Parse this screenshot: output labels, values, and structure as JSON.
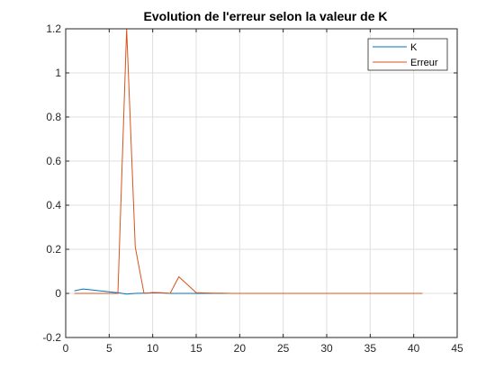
{
  "chart_data": {
    "type": "line",
    "title": "Evolution de l'erreur selon la valeur de K",
    "xlabel": "",
    "ylabel": "",
    "xlim": [
      0,
      45
    ],
    "ylim": [
      -0.2,
      1.2
    ],
    "xticks": [
      0,
      5,
      10,
      15,
      20,
      25,
      30,
      35,
      40,
      45
    ],
    "xtick_labels": [
      "0",
      "5",
      "10",
      "15",
      "20",
      "25",
      "30",
      "35",
      "40",
      "45"
    ],
    "yticks": [
      -0.2,
      0,
      0.2,
      0.4,
      0.6,
      0.8,
      1,
      1.2
    ],
    "ytick_labels": [
      "-0.2",
      "0",
      "0.2",
      "0.4",
      "0.6",
      "0.8",
      "1",
      "1.2"
    ],
    "grid": true,
    "legend_position": "top-right",
    "series": [
      {
        "name": "K",
        "color": "#0072BD",
        "x": [
          1,
          2,
          3,
          4,
          5,
          6,
          7,
          8,
          9,
          10,
          11,
          12,
          13,
          14,
          15,
          16,
          17,
          18,
          19,
          20,
          21,
          22,
          23,
          24,
          25,
          26,
          27,
          28,
          29,
          30,
          31,
          32,
          33,
          34,
          35,
          36,
          37,
          38,
          39,
          40,
          41
        ],
        "values": [
          0.012,
          0.02,
          0.016,
          0.011,
          0.007,
          0.003,
          -0.003,
          0.0,
          0.001,
          0.002,
          0.002,
          0.0,
          0.0,
          0.0,
          0.0,
          0.0,
          0.0,
          0.0,
          0.0,
          0.0,
          0.0,
          0.0,
          0.0,
          0.0,
          0.0,
          0.0,
          0.0,
          0.0,
          0.0,
          0.0,
          0.0,
          0.0,
          0.0,
          0.0,
          0.0,
          0.0,
          0.0,
          0.0,
          0.0,
          0.0,
          0.0
        ]
      },
      {
        "name": "Erreur",
        "color": "#D95319",
        "x": [
          1,
          2,
          3,
          4,
          5,
          6,
          7,
          8,
          9,
          10,
          11,
          12,
          13,
          14,
          15,
          16,
          17,
          18,
          19,
          20,
          21,
          22,
          23,
          24,
          25,
          26,
          27,
          28,
          29,
          30,
          31,
          32,
          33,
          34,
          35,
          36,
          37,
          38,
          39,
          40,
          41
        ],
        "values": [
          0.0,
          0.0,
          0.0,
          0.0,
          0.0,
          0.0,
          1.2,
          0.21,
          0.0,
          0.004,
          0.003,
          0.0,
          0.075,
          0.04,
          0.003,
          0.002,
          0.001,
          0.001,
          0.0,
          0.0,
          0.0,
          0.0,
          0.0,
          0.0,
          0.0,
          0.0,
          0.0,
          0.0,
          0.0,
          0.0,
          0.0,
          0.0,
          0.0,
          0.0,
          0.0,
          0.0,
          0.0,
          0.0,
          0.0,
          0.0,
          0.0
        ]
      }
    ]
  }
}
